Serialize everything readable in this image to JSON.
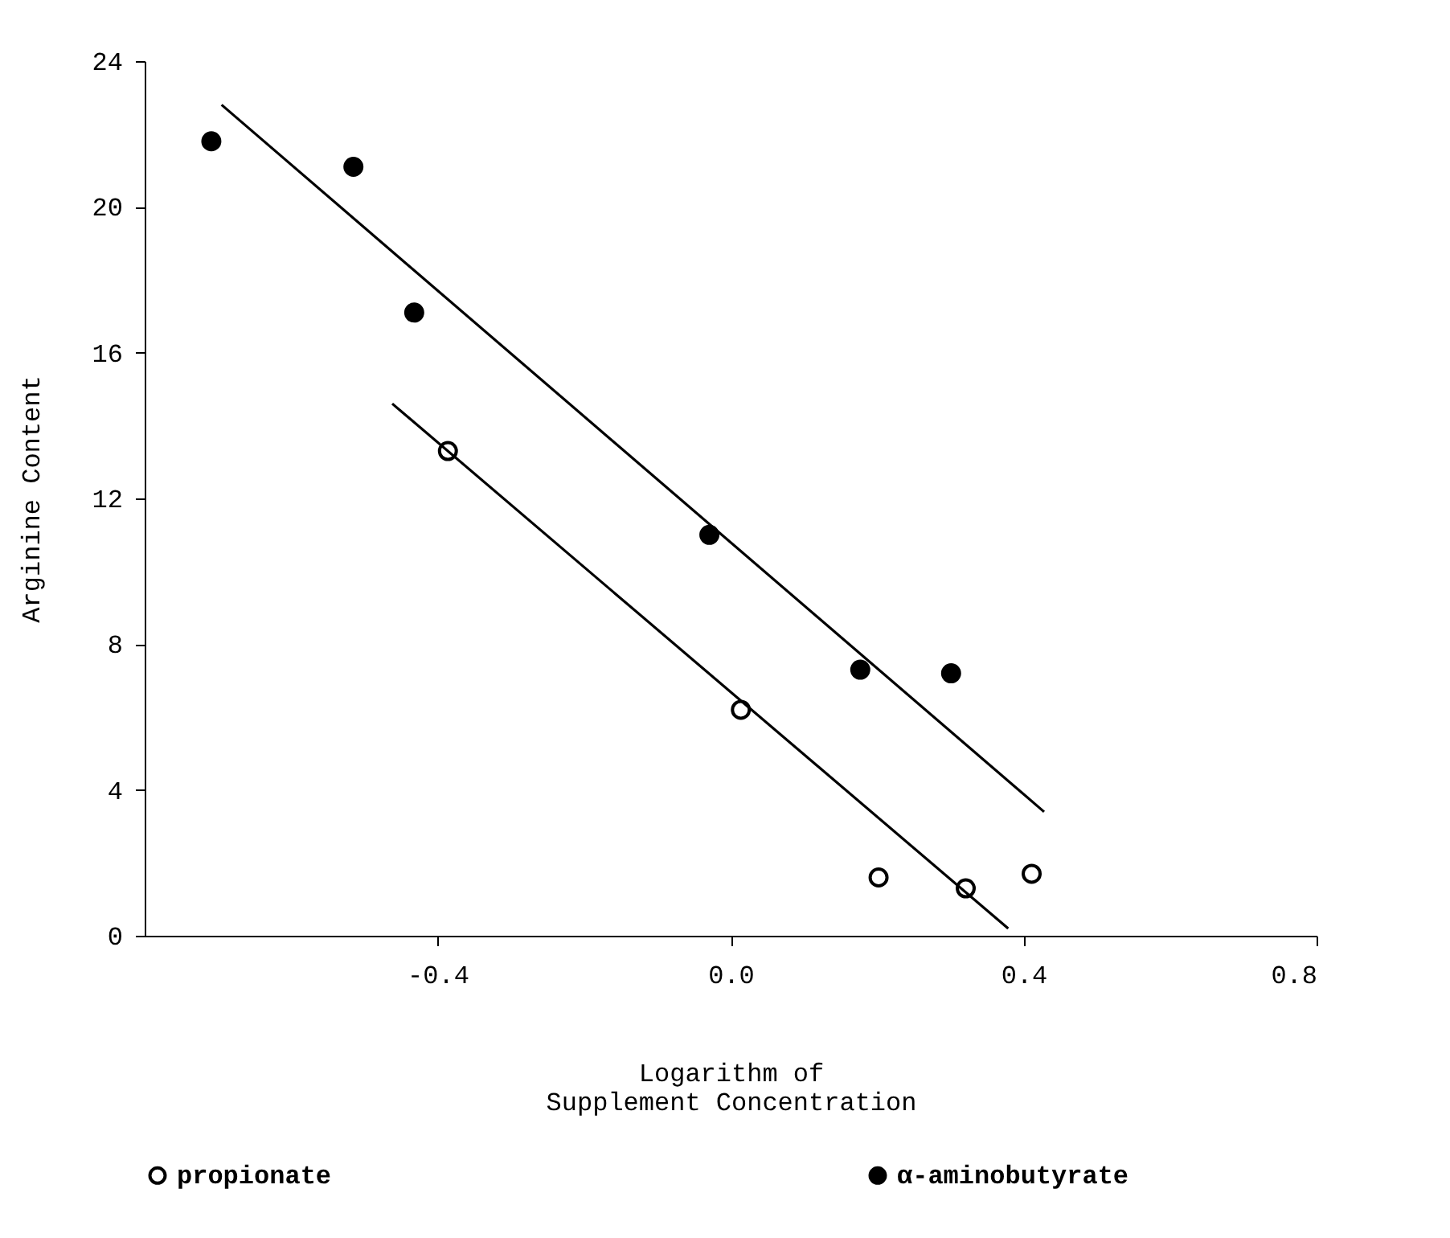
{
  "chart_data": {
    "type": "scatter",
    "xlabel": "Logarithm of\nSupplement Concentration",
    "ylabel": "Arginine Content",
    "xlim": [
      -0.8,
      0.8
    ],
    "xticks": [
      -0.4,
      {
        "value": 0,
        "label": "0.0"
      },
      0.4,
      0.8
    ],
    "ylim": [
      0,
      24
    ],
    "yticks": [
      0,
      4,
      8,
      12,
      16,
      20,
      24
    ],
    "grid": false,
    "legend": "bottom",
    "marker": "circle",
    "series": [
      {
        "name": "propionate",
        "color": "#000000",
        "x": [
          -0.386,
          0.014,
          0.202,
          0.321,
          0.411
        ],
        "values": [
          13.3,
          6.2,
          1.6,
          1.3,
          1.7
        ]
      },
      {
        "name": "α-aminobutyrate",
        "color": "#000000",
        "x": [
          -0.709,
          -0.515,
          -0.432,
          -0.029,
          0.177,
          0.301
        ],
        "values": [
          21.8,
          21.1,
          17.1,
          11.0,
          7.3,
          7.2
        ]
      },
      {
        "type": "line",
        "marker": "none",
        "color": "#000000",
        "x": [
          -0.462,
          0.379
        ],
        "values": [
          14.6,
          0.2
        ]
      },
      {
        "type": "line",
        "marker": "none",
        "color": "#000000",
        "x": [
          -0.695,
          0.428
        ],
        "values": [
          22.8,
          3.4
        ]
      }
    ]
  }
}
